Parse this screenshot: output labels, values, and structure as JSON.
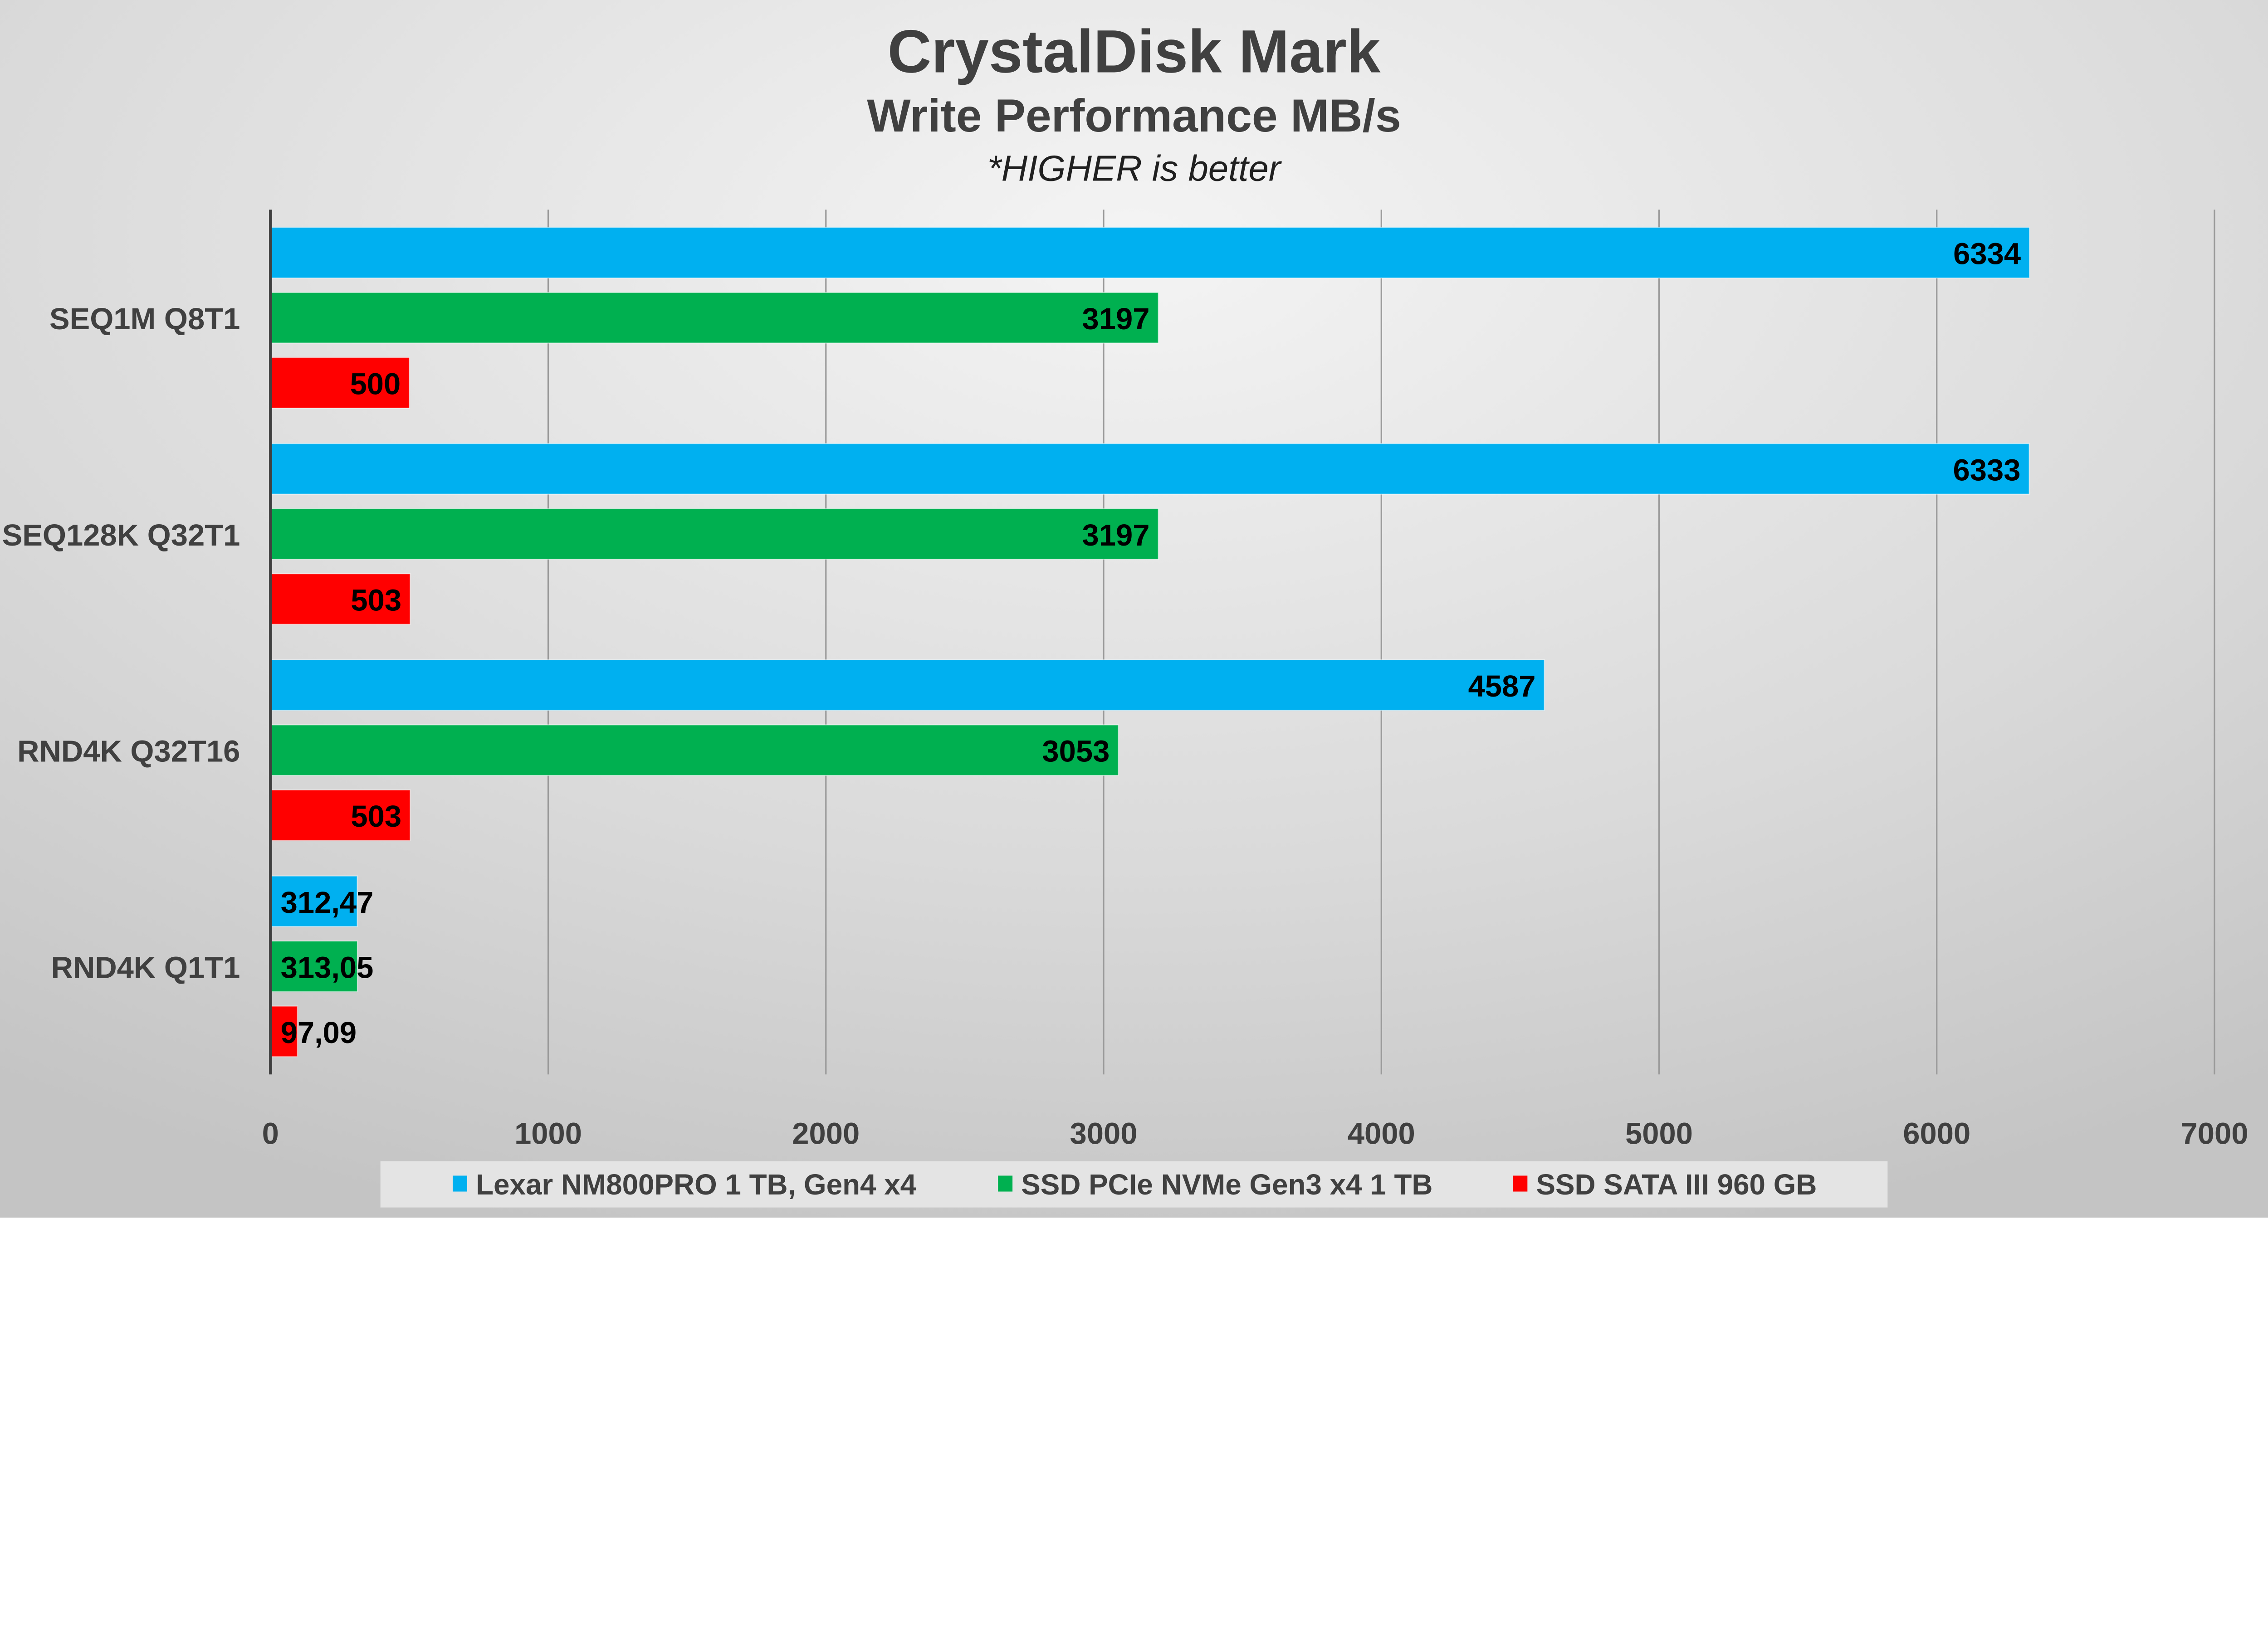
{
  "chart_data": {
    "type": "bar",
    "orientation": "horizontal",
    "title": "CrystalDisk Mark",
    "subtitle": "Write Performance MB/s",
    "note": "*HIGHER is better",
    "categories": [
      "SEQ1M Q8T1",
      "SEQ128K Q32T1",
      "RND4K Q32T16",
      "RND4K Q1T1"
    ],
    "series": [
      {
        "name": "Lexar NM800PRO 1 TB, Gen4 x4",
        "color": "#00b0f0",
        "values": [
          6334,
          6333,
          4587,
          312.47
        ],
        "labels": [
          "6334",
          "6333",
          "4587",
          "312,47"
        ]
      },
      {
        "name": "SSD PCIe NVMe Gen3 x4 1 TB",
        "color": "#00b050",
        "values": [
          3197,
          3197,
          3053,
          313.05
        ],
        "labels": [
          "3197",
          "3197",
          "3053",
          "313,05"
        ]
      },
      {
        "name": "SSD SATA III 960 GB",
        "color": "#ff0000",
        "values": [
          500,
          503,
          503,
          97.09
        ],
        "labels": [
          "500",
          "503",
          "503",
          "97,09"
        ]
      }
    ],
    "xlim": [
      0,
      7000
    ],
    "xticks": [
      "0",
      "1000",
      "2000",
      "3000",
      "4000",
      "5000",
      "6000",
      "7000"
    ],
    "xlabel": "",
    "ylabel": "",
    "grid": true,
    "legend_position": "bottom"
  }
}
